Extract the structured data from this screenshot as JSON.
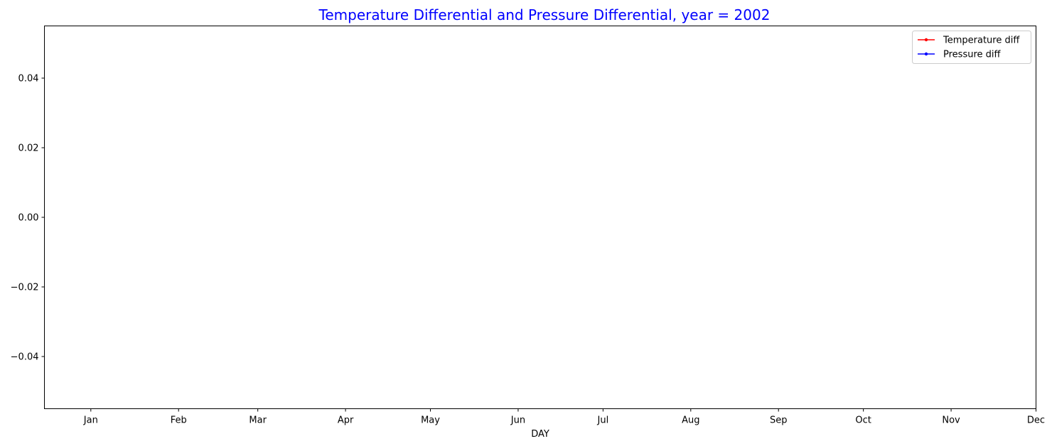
{
  "chart_data": {
    "type": "line",
    "title": "Temperature Differential and Pressure Differential, year = 2002",
    "title_color": "#0000ff",
    "xlabel": "DAY",
    "ylabel": "",
    "x_ticks": [
      "Jan",
      "Feb",
      "Mar",
      "Apr",
      "May",
      "Jun",
      "Jul",
      "Aug",
      "Sep",
      "Oct",
      "Nov",
      "Dec"
    ],
    "y_ticks": [
      "0.04",
      "0.02",
      "0.00",
      "−0.02",
      "−0.04"
    ],
    "y_tick_values": [
      0.04,
      0.02,
      0.0,
      -0.02,
      -0.04
    ],
    "ylim": [
      -0.055,
      0.055
    ],
    "grid": false,
    "legend_position": "top-right",
    "series": [
      {
        "name": "Temperature diff",
        "color": "#ff0000",
        "marker": "dot",
        "values": []
      },
      {
        "name": "Pressure diff",
        "color": "#0000ff",
        "marker": "dot",
        "values": []
      }
    ]
  }
}
